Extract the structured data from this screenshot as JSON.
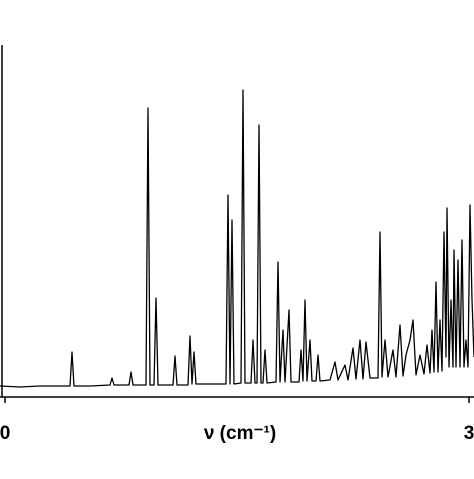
{
  "chart_data": {
    "type": "line",
    "xlabel": "ν (cm⁻¹)",
    "xlim": [
      0,
      474
    ],
    "xticks": [
      {
        "value": 5,
        "label": "0"
      },
      {
        "value": 469,
        "label": "3"
      }
    ],
    "ylim": [
      0,
      352
    ],
    "series": [
      {
        "color": "#000000",
        "x": [
          0,
          20,
          40,
          60,
          70,
          72,
          74,
          90,
          110,
          112,
          114,
          129,
          131,
          133,
          146,
          148,
          150,
          154,
          156,
          158,
          173,
          175,
          177,
          188,
          190,
          192,
          194,
          196,
          210,
          226,
          228,
          230,
          232,
          234,
          241,
          243,
          245,
          251,
          253,
          255,
          257,
          259,
          261,
          263,
          265,
          267,
          276,
          278,
          280,
          283,
          285,
          289,
          291,
          299,
          301,
          303,
          305,
          307,
          310,
          312,
          316,
          318,
          320,
          330,
          335,
          338,
          345,
          348,
          353,
          356,
          360,
          363,
          366,
          370,
          378,
          380,
          382,
          385,
          388,
          393,
          396,
          400,
          403,
          406,
          410,
          413,
          416,
          420,
          424,
          427,
          430,
          432,
          434,
          436,
          438,
          440,
          442,
          444,
          446,
          447,
          449,
          451,
          453,
          454,
          456,
          458,
          460,
          462,
          464,
          466,
          468,
          470,
          472,
          474
        ],
        "values": [
          11,
          10,
          11,
          11,
          11,
          45,
          11,
          11,
          12,
          19,
          12,
          12,
          25,
          12,
          12,
          289,
          12,
          12,
          99,
          12,
          12,
          41,
          12,
          12,
          61,
          13,
          45,
          13,
          13,
          13,
          202,
          13,
          177,
          13,
          14,
          307,
          14,
          14,
          57,
          14,
          14,
          272,
          14,
          14,
          47,
          14,
          15,
          135,
          15,
          67,
          15,
          87,
          15,
          15,
          47,
          16,
          97,
          16,
          57,
          16,
          16,
          42,
          16,
          17,
          35,
          17,
          32,
          17,
          49,
          18,
          57,
          18,
          55,
          19,
          19,
          165,
          20,
          57,
          20,
          47,
          20,
          72,
          21,
          42,
          57,
          77,
          22,
          42,
          23,
          52,
          24,
          67,
          25,
          115,
          25,
          77,
          26,
          165,
          40,
          189,
          30,
          97,
          30,
          147,
          30,
          137,
          30,
          157,
          30,
          57,
          30,
          192,
          97,
          40
        ]
      }
    ]
  }
}
